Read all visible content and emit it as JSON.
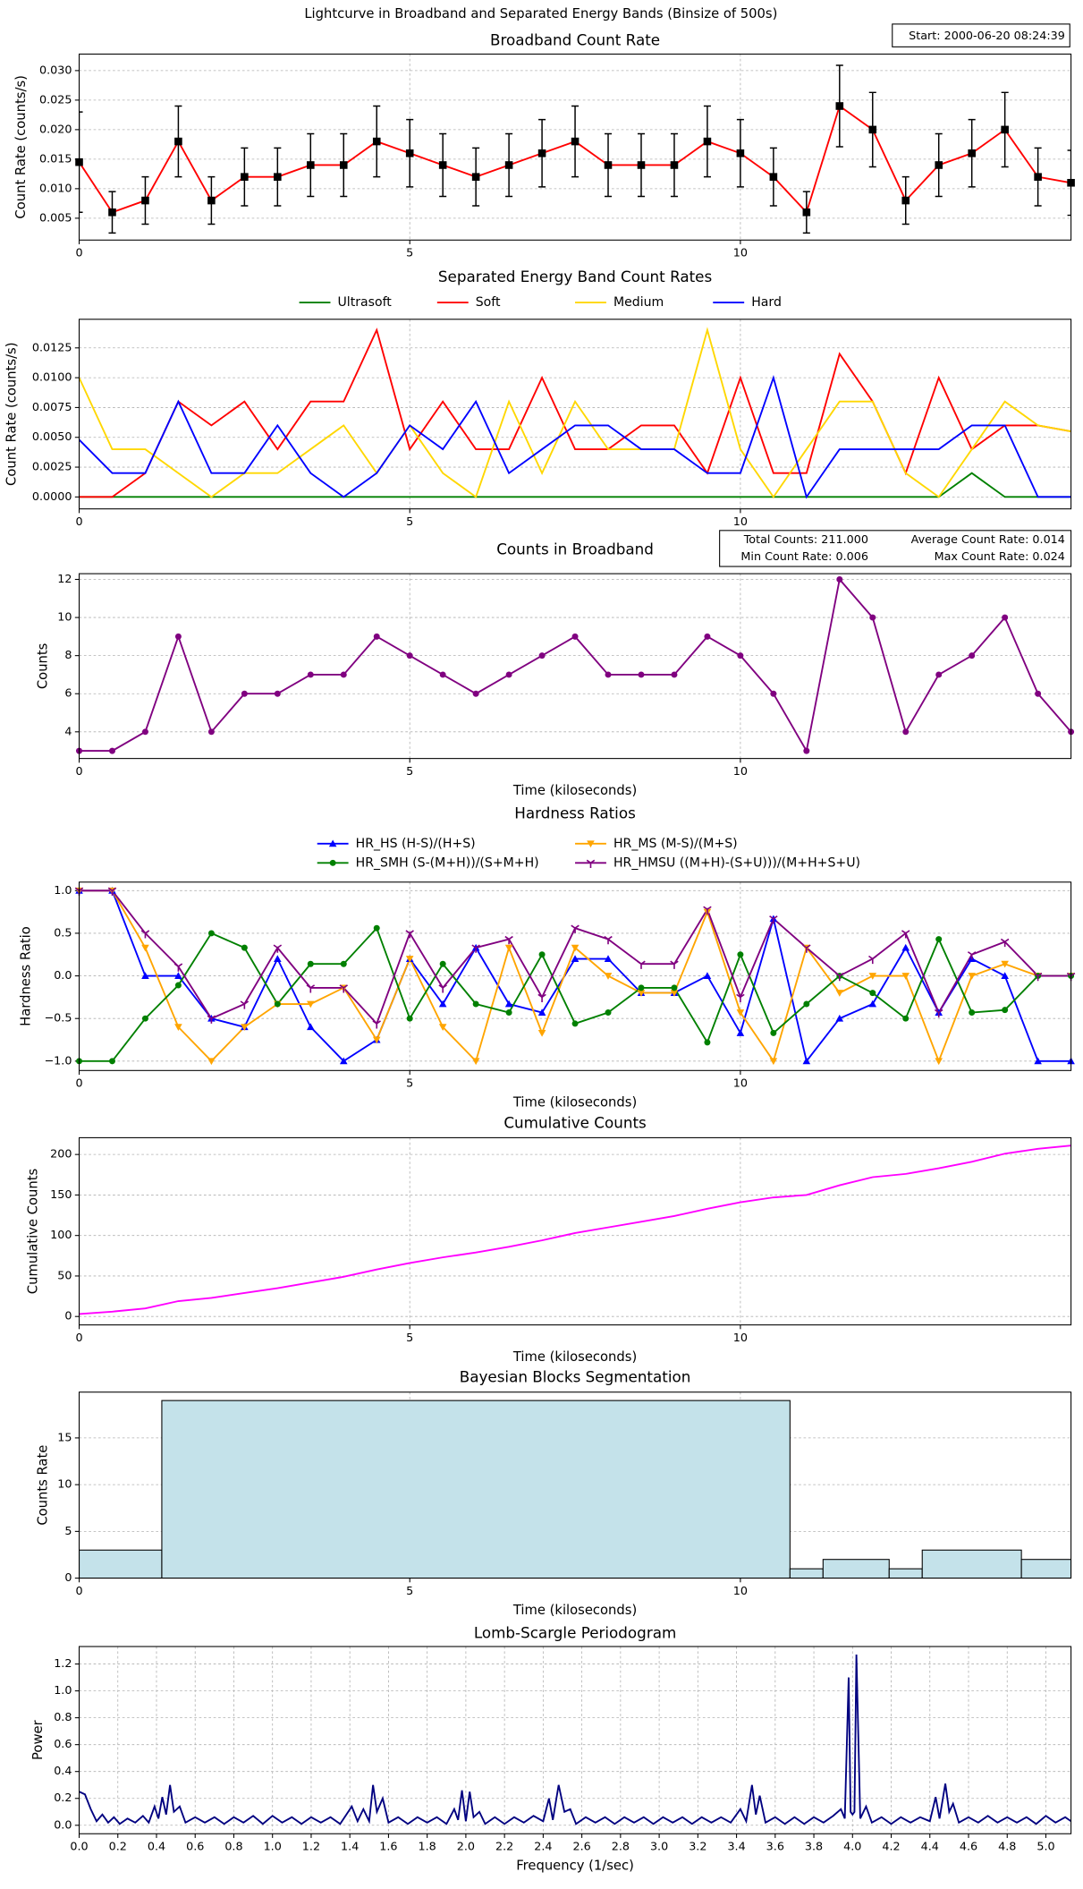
{
  "title": "Lightcurve in Broadband and Separated Energy Bands (Binsize of 500s)",
  "annotation": "Start: 2000-06-20 08:24:39",
  "chart_data": [
    {
      "type": "line",
      "title": "Broadband Count Rate",
      "ylabel": "Count Rate (counts/s)",
      "x": [
        0,
        0.5,
        1,
        1.5,
        2,
        2.5,
        3,
        3.5,
        4,
        4.5,
        5,
        5.5,
        6,
        6.5,
        7,
        7.5,
        8,
        8.5,
        9,
        9.5,
        10,
        10.5,
        11,
        11.5,
        12,
        12.5,
        13,
        13.5,
        14,
        14.5,
        15
      ],
      "values": [
        0.0145,
        0.006,
        0.008,
        0.018,
        0.008,
        0.012,
        0.012,
        0.014,
        0.014,
        0.018,
        0.016,
        0.014,
        0.012,
        0.014,
        0.016,
        0.018,
        0.014,
        0.014,
        0.014,
        0.018,
        0.016,
        0.012,
        0.006,
        0.024,
        0.02,
        0.008,
        0.014,
        0.016,
        0.02,
        0.012,
        0.011
      ],
      "errors": [
        0.0085,
        0.0035,
        0.004,
        0.006,
        0.004,
        0.0049,
        0.0049,
        0.0053,
        0.0053,
        0.006,
        0.0057,
        0.0053,
        0.0049,
        0.0053,
        0.0057,
        0.006,
        0.0053,
        0.0053,
        0.0053,
        0.006,
        0.0057,
        0.0049,
        0.0035,
        0.0069,
        0.0063,
        0.004,
        0.0053,
        0.0057,
        0.0063,
        0.0049,
        0.0055
      ],
      "color": "red",
      "marker": "square",
      "marker_color": "black",
      "xlim": [
        0,
        15
      ],
      "ylim": [
        0.0013,
        0.0328
      ],
      "xticks": [
        0,
        5,
        10
      ],
      "yticks": [
        0.005,
        {
          "value": 0.01,
          "label": "0.010"
        },
        0.015,
        {
          "value": 0.02,
          "label": "0.020"
        },
        0.025,
        {
          "value": 0.03,
          "label": "0.030"
        }
      ],
      "grid": true
    },
    {
      "type": "line",
      "title": "Separated Energy Band Count Rates",
      "ylabel": "Count Rate (counts/s)",
      "x": [
        0,
        0.5,
        1,
        1.5,
        2,
        2.5,
        3,
        3.5,
        4,
        4.5,
        5,
        5.5,
        6,
        6.5,
        7,
        7.5,
        8,
        8.5,
        9,
        9.5,
        10,
        10.5,
        11,
        11.5,
        12,
        12.5,
        13,
        13.5,
        14,
        14.5,
        15
      ],
      "series": [
        {
          "name": "Ultrasoft",
          "color": "green",
          "values": [
            0,
            0,
            0,
            0,
            0,
            0,
            0,
            0,
            0,
            0,
            0,
            0,
            0,
            0,
            0,
            0,
            0,
            0,
            0,
            0,
            0,
            0,
            0,
            0,
            0,
            0,
            0,
            0.002,
            0,
            0,
            0
          ]
        },
        {
          "name": "Soft",
          "color": "red",
          "values": [
            0,
            0,
            0.002,
            0.008,
            0.006,
            0.008,
            0.004,
            0.008,
            0.008,
            0.014,
            0.004,
            0.008,
            0.004,
            0.004,
            0.01,
            0.004,
            0.004,
            0.006,
            0.006,
            0.002,
            0.01,
            0.002,
            0.002,
            0.012,
            0.008,
            0.002,
            0.01,
            0.004,
            0.006,
            0.006,
            0.0055
          ]
        },
        {
          "name": "Medium",
          "color": "gold",
          "values": [
            0.01,
            0.004,
            0.004,
            0.002,
            0,
            0.002,
            0.002,
            0.004,
            0.006,
            0.002,
            0.006,
            0.002,
            0,
            0.008,
            0.002,
            0.008,
            0.004,
            0.004,
            0.004,
            0.014,
            0.004,
            0,
            0.004,
            0.008,
            0.008,
            0.002,
            0,
            0.004,
            0.008,
            0.006,
            0.0055
          ]
        },
        {
          "name": "Hard",
          "color": "blue",
          "values": [
            0.0048,
            0.002,
            0.002,
            0.008,
            0.002,
            0.002,
            0.006,
            0.002,
            0,
            0.002,
            0.006,
            0.004,
            0.008,
            0.002,
            0.004,
            0.006,
            0.006,
            0.004,
            0.004,
            0.002,
            0.002,
            0.01,
            0,
            0.004,
            0.004,
            0.004,
            0.004,
            0.006,
            0.006,
            0,
            0
          ]
        }
      ],
      "legend": "top",
      "legend_columns": 4,
      "xlim": [
        0,
        15
      ],
      "ylim": [
        -0.001,
        0.0149
      ],
      "xticks": [
        0,
        5,
        10
      ],
      "yticks": [
        {
          "value": 0,
          "label": "0.0000"
        },
        {
          "value": 0.0025,
          "label": "0.0025"
        },
        {
          "value": 0.005,
          "label": "0.0050"
        },
        {
          "value": 0.0075,
          "label": "0.0075"
        },
        {
          "value": 0.01,
          "label": "0.0100"
        },
        {
          "value": 0.0125,
          "label": "0.0125"
        }
      ],
      "grid": true
    },
    {
      "type": "line",
      "title": "Counts in Broadband",
      "xlabel": "Time (kiloseconds)",
      "ylabel": "Counts",
      "annotations": [
        "Total Counts: 211.000",
        "Average Count Rate: 0.014",
        "Min Count Rate: 0.006",
        "Max Count Rate: 0.024"
      ],
      "x": [
        0,
        0.5,
        1,
        1.5,
        2,
        2.5,
        3,
        3.5,
        4,
        4.5,
        5,
        5.5,
        6,
        6.5,
        7,
        7.5,
        8,
        8.5,
        9,
        9.5,
        10,
        10.5,
        11,
        11.5,
        12,
        12.5,
        13,
        13.5,
        14,
        14.5,
        15
      ],
      "values": [
        3,
        3,
        4,
        9,
        4,
        6,
        6,
        7,
        7,
        9,
        8,
        7,
        6,
        7,
        8,
        9,
        7,
        7,
        7,
        9,
        8,
        6,
        3,
        12,
        10,
        4,
        7,
        8,
        10,
        6,
        4
      ],
      "color": "purple",
      "marker": "circle",
      "marker_color": "purple",
      "xlim": [
        0,
        15
      ],
      "ylim": [
        2.6,
        12.3
      ],
      "xticks": [
        0,
        5,
        10
      ],
      "yticks": [
        4,
        6,
        8,
        10,
        12
      ],
      "grid": true
    },
    {
      "type": "line",
      "title": "Hardness Ratios",
      "xlabel": "Time (kiloseconds)",
      "ylabel": "Hardness Ratio",
      "x": [
        0,
        0.5,
        1,
        1.5,
        2,
        2.5,
        3,
        3.5,
        4,
        4.5,
        5,
        5.5,
        6,
        6.5,
        7,
        7.5,
        8,
        8.5,
        9,
        9.5,
        10,
        10.5,
        11,
        11.5,
        12,
        12.5,
        13,
        13.5,
        14,
        14.5,
        15
      ],
      "series": [
        {
          "name": "HR_HS (H-S)/(H+S)",
          "color": "blue",
          "marker": "triangle-up",
          "values": [
            1,
            1,
            0,
            0,
            -0.5,
            -0.6,
            0.2,
            -0.6,
            -1,
            -0.75,
            0.2,
            -0.33,
            0.33,
            -0.33,
            -0.43,
            0.2,
            0.2,
            -0.2,
            -0.2,
            0,
            -0.67,
            0.67,
            -1,
            -0.5,
            -0.33,
            0.33,
            -0.43,
            0.2,
            0,
            -1,
            -1
          ]
        },
        {
          "name": "HR_MS (M-S)/(M+S)",
          "color": "orange",
          "marker": "triangle-down",
          "values": [
            1,
            1,
            0.33,
            -0.6,
            -1,
            -0.6,
            -0.33,
            -0.33,
            -0.14,
            -0.75,
            0.2,
            -0.6,
            -1,
            0.33,
            -0.67,
            0.33,
            0,
            -0.2,
            -0.2,
            0.75,
            -0.43,
            -1,
            0.33,
            -0.2,
            0,
            0,
            -1,
            0,
            0.14,
            0,
            0
          ]
        },
        {
          "name": "HR_SMH (S-(M+H))/(S+M+H)",
          "color": "green",
          "marker": "circle",
          "values": [
            -1,
            -1,
            -0.5,
            -0.11,
            0.5,
            0.33,
            -0.33,
            0.14,
            0.14,
            0.56,
            -0.5,
            0.14,
            -0.33,
            -0.43,
            0.25,
            -0.56,
            -0.43,
            -0.14,
            -0.14,
            -0.78,
            0.25,
            -0.67,
            -0.33,
            0,
            -0.2,
            -0.5,
            0.43,
            -0.43,
            -0.4,
            0,
            0
          ]
        },
        {
          "name": "HR_HMSU ((M+H)-(S+U)))/(M+H+S+U)",
          "color": "purple",
          "marker": "tri",
          "values": [
            1,
            1,
            0.5,
            0.11,
            -0.5,
            -0.33,
            0.33,
            -0.14,
            -0.14,
            -0.56,
            0.5,
            -0.14,
            0.33,
            0.43,
            -0.25,
            0.56,
            0.43,
            0.14,
            0.14,
            0.78,
            -0.25,
            0.67,
            0.33,
            0,
            0.2,
            0.5,
            -0.43,
            0.25,
            0.4,
            0,
            0
          ]
        }
      ],
      "legend": "top",
      "legend_columns": 2,
      "xlim": [
        0,
        15
      ],
      "ylim": [
        -1.11,
        1.1
      ],
      "xticks": [
        0,
        5,
        10
      ],
      "yticks": [
        {
          "value": -1,
          "label": "−1.0"
        },
        {
          "value": -0.5,
          "label": "−0.5"
        },
        {
          "value": 0,
          "label": "0.0"
        },
        {
          "value": 0.5,
          "label": "0.5"
        },
        {
          "value": 1,
          "label": "1.0"
        }
      ],
      "grid": true
    },
    {
      "type": "line",
      "title": "Cumulative Counts",
      "xlabel": "Time (kiloseconds)",
      "ylabel": "Cumulative Counts",
      "x": [
        0,
        0.5,
        1,
        1.5,
        2,
        2.5,
        3,
        3.5,
        4,
        4.5,
        5,
        5.5,
        6,
        6.5,
        7,
        7.5,
        8,
        8.5,
        9,
        9.5,
        10,
        10.5,
        11,
        11.5,
        12,
        12.5,
        13,
        13.5,
        14,
        14.5,
        15
      ],
      "values": [
        3,
        6,
        10,
        19,
        23,
        29,
        35,
        42,
        49,
        58,
        66,
        73,
        79,
        86,
        94,
        103,
        110,
        117,
        124,
        133,
        141,
        147,
        150,
        162,
        172,
        176,
        183,
        191,
        201,
        207,
        211
      ],
      "color": "magenta",
      "xlim": [
        0,
        15
      ],
      "ylim": [
        -10.4,
        220.7
      ],
      "xticks": [
        0,
        5,
        10
      ],
      "yticks": [
        0,
        50,
        100,
        150,
        200
      ],
      "grid": true
    },
    {
      "type": "histogram",
      "title": "Bayesian Blocks Segmentation",
      "xlabel": "Time (kiloseconds)",
      "ylabel": "Counts Rate",
      "bins": [
        0,
        1.25,
        10.75,
        11.25,
        12.25,
        12.75,
        14.25,
        15
      ],
      "values": [
        3,
        19,
        1,
        2,
        1,
        3,
        2
      ],
      "color": "#c4e2ea",
      "edge_color": "black",
      "xlim": [
        0,
        15
      ],
      "ylim": [
        0,
        19.9
      ],
      "xticks": [
        0,
        5,
        10
      ],
      "yticks": [
        0,
        5,
        10,
        15
      ],
      "grid": true
    },
    {
      "type": "line",
      "title": "Lomb-Scargle Periodogram",
      "xlabel": "Frequency (1/sec)",
      "ylabel": "Power",
      "x": [
        0,
        0.03,
        0.06,
        0.09,
        0.12,
        0.15,
        0.18,
        0.21,
        0.25,
        0.29,
        0.33,
        0.36,
        0.39,
        0.41,
        0.43,
        0.45,
        0.47,
        0.49,
        0.52,
        0.55,
        0.6,
        0.65,
        0.7,
        0.75,
        0.8,
        0.85,
        0.9,
        0.95,
        1,
        1.05,
        1.1,
        1.15,
        1.2,
        1.25,
        1.3,
        1.35,
        1.41,
        1.44,
        1.47,
        1.5,
        1.52,
        1.54,
        1.57,
        1.6,
        1.65,
        1.7,
        1.75,
        1.8,
        1.85,
        1.9,
        1.94,
        1.96,
        1.98,
        2,
        2.02,
        2.04,
        2.07,
        2.1,
        2.15,
        2.2,
        2.25,
        2.3,
        2.35,
        2.4,
        2.43,
        2.45,
        2.48,
        2.51,
        2.54,
        2.57,
        2.62,
        2.67,
        2.72,
        2.77,
        2.82,
        2.87,
        2.92,
        2.97,
        3.02,
        3.07,
        3.12,
        3.17,
        3.22,
        3.27,
        3.32,
        3.37,
        3.42,
        3.45,
        3.48,
        3.5,
        3.52,
        3.55,
        3.6,
        3.65,
        3.7,
        3.75,
        3.8,
        3.85,
        3.9,
        3.94,
        3.96,
        3.98,
        3.99,
        4,
        4.01,
        4.02,
        4.04,
        4.07,
        4.1,
        4.15,
        4.2,
        4.25,
        4.3,
        4.35,
        4.4,
        4.43,
        4.45,
        4.48,
        4.5,
        4.52,
        4.55,
        4.6,
        4.65,
        4.7,
        4.75,
        4.8,
        4.85,
        4.9,
        4.95,
        5,
        5.05,
        5.1,
        5.13
      ],
      "values": [
        0.25,
        0.23,
        0.12,
        0.03,
        0.08,
        0.02,
        0.06,
        0.01,
        0.05,
        0.02,
        0.07,
        0.02,
        0.14,
        0.05,
        0.21,
        0.08,
        0.3,
        0.1,
        0.14,
        0.02,
        0.06,
        0.02,
        0.06,
        0.01,
        0.06,
        0.02,
        0.07,
        0.01,
        0.07,
        0.02,
        0.06,
        0.01,
        0.06,
        0.02,
        0.06,
        0.01,
        0.14,
        0.03,
        0.12,
        0.03,
        0.3,
        0.1,
        0.2,
        0.02,
        0.06,
        0.01,
        0.06,
        0.02,
        0.06,
        0.01,
        0.12,
        0.04,
        0.26,
        0.03,
        0.25,
        0.06,
        0.1,
        0.01,
        0.06,
        0.01,
        0.06,
        0.02,
        0.07,
        0.03,
        0.2,
        0.04,
        0.3,
        0.1,
        0.12,
        0.01,
        0.06,
        0.02,
        0.06,
        0.01,
        0.06,
        0.02,
        0.06,
        0.01,
        0.06,
        0.02,
        0.06,
        0.01,
        0.06,
        0.02,
        0.06,
        0.02,
        0.12,
        0.03,
        0.3,
        0.08,
        0.22,
        0.02,
        0.06,
        0.01,
        0.06,
        0.01,
        0.06,
        0.02,
        0.07,
        0.12,
        0.05,
        1.1,
        0.1,
        0.08,
        0.1,
        1.27,
        0.05,
        0.14,
        0.02,
        0.06,
        0.01,
        0.06,
        0.02,
        0.06,
        0.03,
        0.21,
        0.05,
        0.31,
        0.1,
        0.16,
        0.02,
        0.06,
        0.02,
        0.07,
        0.02,
        0.06,
        0.02,
        0.06,
        0.01,
        0.07,
        0.02,
        0.06,
        0.03
      ],
      "color": "navy",
      "xlim": [
        0,
        5.13
      ],
      "ylim": [
        -0.063,
        1.33
      ],
      "xticks": [
        {
          "value": 0,
          "label": "0.0"
        },
        {
          "value": 0.2,
          "label": "0.2"
        },
        {
          "value": 0.4,
          "label": "0.4"
        },
        {
          "value": 0.6,
          "label": "0.6"
        },
        {
          "value": 0.8,
          "label": "0.8"
        },
        {
          "value": 1,
          "label": "1.0"
        },
        {
          "value": 1.2,
          "label": "1.2"
        },
        {
          "value": 1.4,
          "label": "1.4"
        },
        {
          "value": 1.6,
          "label": "1.6"
        },
        {
          "value": 1.8,
          "label": "1.8"
        },
        {
          "value": 2,
          "label": "2.0"
        },
        {
          "value": 2.2,
          "label": "2.2"
        },
        {
          "value": 2.4,
          "label": "2.4"
        },
        {
          "value": 2.6,
          "label": "2.6"
        },
        {
          "value": 2.8,
          "label": "2.8"
        },
        {
          "value": 3,
          "label": "3.0"
        },
        {
          "value": 3.2,
          "label": "3.2"
        },
        {
          "value": 3.4,
          "label": "3.4"
        },
        {
          "value": 3.6,
          "label": "3.6"
        },
        {
          "value": 3.8,
          "label": "3.8"
        },
        {
          "value": 4,
          "label": "4.0"
        },
        {
          "value": 4.2,
          "label": "4.2"
        },
        {
          "value": 4.4,
          "label": "4.4"
        },
        {
          "value": 4.6,
          "label": "4.6"
        },
        {
          "value": 4.8,
          "label": "4.8"
        },
        {
          "value": 5,
          "label": "5.0"
        }
      ],
      "yticks": [
        {
          "value": 0,
          "label": "0.0"
        },
        {
          "value": 0.2,
          "label": "0.2"
        },
        {
          "value": 0.4,
          "label": "0.4"
        },
        {
          "value": 0.6,
          "label": "0.6"
        },
        {
          "value": 0.8,
          "label": "0.8"
        },
        {
          "value": 1,
          "label": "1.0"
        },
        {
          "value": 1.2,
          "label": "1.2"
        }
      ],
      "grid": true
    }
  ]
}
